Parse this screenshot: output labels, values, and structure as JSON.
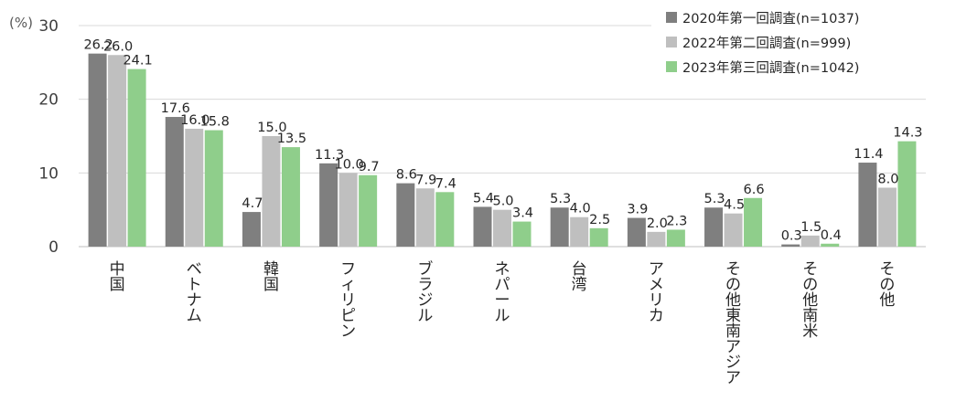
{
  "chart_data": {
    "type": "bar",
    "unit_label": "(%)",
    "categories": [
      "中国",
      "ベトナム",
      "韓国",
      "フィリピン",
      "ブラジル",
      "ネパール",
      "台湾",
      "アメリカ",
      "その他東南アジア",
      "その他南米",
      "その他"
    ],
    "series": [
      {
        "name": "2020年第一回調査(n=1037)",
        "color": "#7f7f7f",
        "values": [
          26.2,
          17.6,
          4.7,
          11.3,
          8.6,
          5.4,
          5.3,
          3.9,
          5.3,
          0.3,
          11.4
        ]
      },
      {
        "name": "2022年第二回調査(n=999)",
        "color": "#bfbfbf",
        "values": [
          26.0,
          16.0,
          15.0,
          10.0,
          7.9,
          5.0,
          4.0,
          2.0,
          4.5,
          1.5,
          8.0
        ]
      },
      {
        "name": "2023年第三回調査(n=1042)",
        "color": "#8fce8b",
        "values": [
          24.1,
          15.8,
          13.5,
          9.7,
          7.4,
          3.4,
          2.5,
          2.3,
          6.6,
          0.4,
          14.3
        ]
      }
    ],
    "ylim": [
      0,
      30
    ],
    "yticks": [
      0,
      10,
      20,
      30
    ],
    "grid": true,
    "legend_position": "top-right"
  }
}
